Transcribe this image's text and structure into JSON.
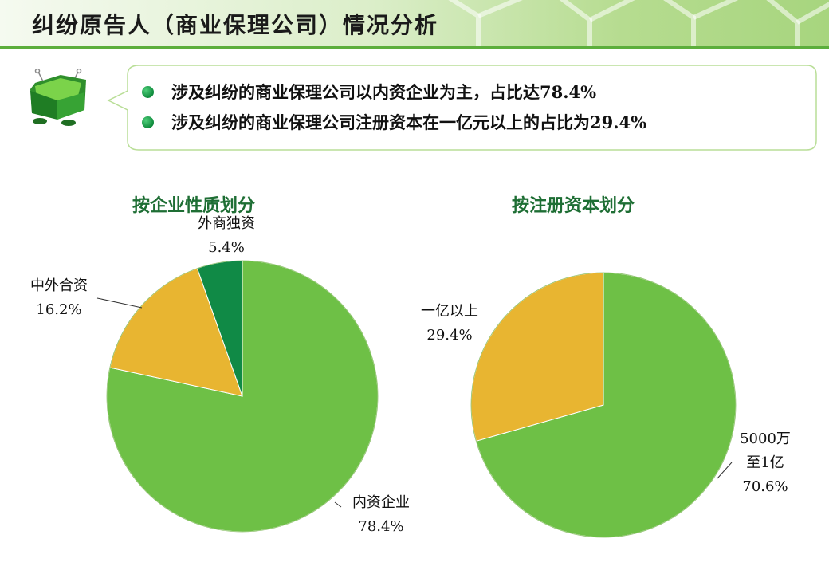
{
  "header": {
    "title": "纠纷原告人（商业保理公司）情况分析"
  },
  "mascot": {
    "icon": "folder-mascot-icon"
  },
  "summary": {
    "bullets": [
      "涉及纠纷的商业保理公司以内资企业为主，占比达78.4%",
      "涉及纠纷的商业保理公司注册资本在一亿元以上的占比为29.4%"
    ]
  },
  "colors": {
    "light_green": "#6ec046",
    "yellow": "#e8b531",
    "dark_green": "#108a46",
    "accent": "#5cae3c"
  },
  "chart_data": [
    {
      "type": "pie",
      "title": "按企业性质划分",
      "slices": [
        {
          "label": "内资企业",
          "value": 78.4,
          "display": "78.4%",
          "color": "#6ec046"
        },
        {
          "label": "中外合资",
          "value": 16.2,
          "display": "16.2%",
          "color": "#e8b531"
        },
        {
          "label": "外商独资",
          "value": 5.4,
          "display": "5.4%",
          "color": "#108a46"
        }
      ]
    },
    {
      "type": "pie",
      "title": "按注册资本划分",
      "slices": [
        {
          "label_lines": [
            "5000万",
            "至1亿"
          ],
          "value": 70.6,
          "display": "70.6%",
          "color": "#6ec046"
        },
        {
          "label": "一亿以上",
          "value": 29.4,
          "display": "29.4%",
          "color": "#e8b531"
        }
      ]
    }
  ]
}
